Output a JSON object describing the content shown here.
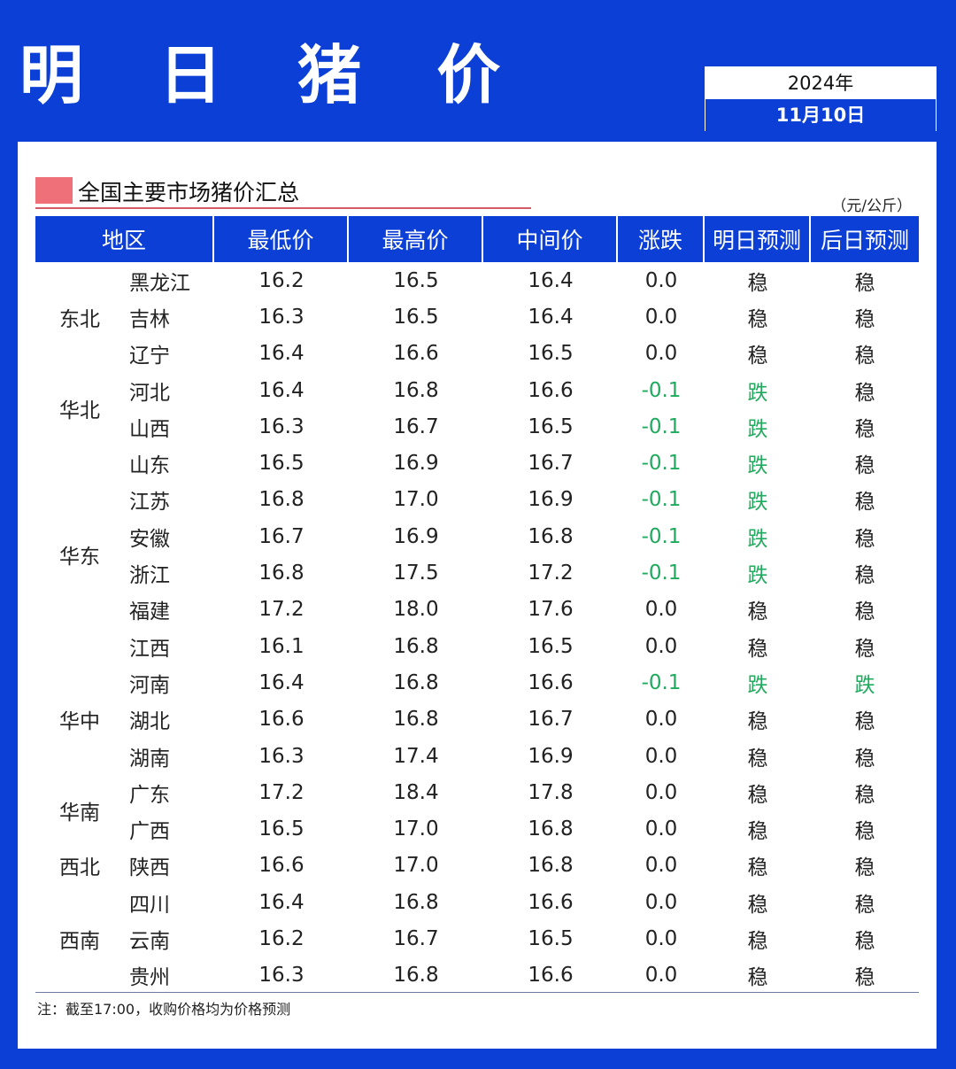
{
  "header": {
    "title": "明 日 猪 价",
    "year": "2024年",
    "date": "11月10日"
  },
  "section": {
    "title": "全国主要市场猪价汇总",
    "unit": "（元/公斤）"
  },
  "colors": {
    "brand_blue": "#0b3fd6",
    "marker_pink": "#f0707a",
    "down_green": "#1faa5e"
  },
  "table": {
    "headers": [
      "地区",
      "最低价",
      "最高价",
      "中间价",
      "涨跌",
      "明日预测",
      "后日预测"
    ],
    "groups": [
      {
        "region": "东北",
        "rows": [
          {
            "province": "黑龙江",
            "low": "16.2",
            "high": "16.5",
            "mid": "16.4",
            "change": "0.0",
            "tomorrow": "稳",
            "after": "稳"
          },
          {
            "province": "吉林",
            "low": "16.3",
            "high": "16.5",
            "mid": "16.4",
            "change": "0.0",
            "tomorrow": "稳",
            "after": "稳"
          },
          {
            "province": "辽宁",
            "low": "16.4",
            "high": "16.6",
            "mid": "16.5",
            "change": "0.0",
            "tomorrow": "稳",
            "after": "稳"
          }
        ]
      },
      {
        "region": "华北",
        "rows": [
          {
            "province": "河北",
            "low": "16.4",
            "high": "16.8",
            "mid": "16.6",
            "change": "-0.1",
            "tomorrow": "跌",
            "after": "稳"
          },
          {
            "province": "山西",
            "low": "16.3",
            "high": "16.7",
            "mid": "16.5",
            "change": "-0.1",
            "tomorrow": "跌",
            "after": "稳"
          }
        ]
      },
      {
        "region": "华东",
        "rows": [
          {
            "province": "山东",
            "low": "16.5",
            "high": "16.9",
            "mid": "16.7",
            "change": "-0.1",
            "tomorrow": "跌",
            "after": "稳"
          },
          {
            "province": "江苏",
            "low": "16.8",
            "high": "17.0",
            "mid": "16.9",
            "change": "-0.1",
            "tomorrow": "跌",
            "after": "稳"
          },
          {
            "province": "安徽",
            "low": "16.7",
            "high": "16.9",
            "mid": "16.8",
            "change": "-0.1",
            "tomorrow": "跌",
            "after": "稳"
          },
          {
            "province": "浙江",
            "low": "16.8",
            "high": "17.5",
            "mid": "17.2",
            "change": "-0.1",
            "tomorrow": "跌",
            "after": "稳"
          },
          {
            "province": "福建",
            "low": "17.2",
            "high": "18.0",
            "mid": "17.6",
            "change": "0.0",
            "tomorrow": "稳",
            "after": "稳"
          },
          {
            "province": "江西",
            "low": "16.1",
            "high": "16.8",
            "mid": "16.5",
            "change": "0.0",
            "tomorrow": "稳",
            "after": "稳"
          }
        ]
      },
      {
        "region": "华中",
        "rows": [
          {
            "province": "河南",
            "low": "16.4",
            "high": "16.8",
            "mid": "16.6",
            "change": "-0.1",
            "tomorrow": "跌",
            "after": "跌"
          },
          {
            "province": "湖北",
            "low": "16.6",
            "high": "16.8",
            "mid": "16.7",
            "change": "0.0",
            "tomorrow": "稳",
            "after": "稳"
          },
          {
            "province": "湖南",
            "low": "16.3",
            "high": "17.4",
            "mid": "16.9",
            "change": "0.0",
            "tomorrow": "稳",
            "after": "稳"
          }
        ]
      },
      {
        "region": "华南",
        "rows": [
          {
            "province": "广东",
            "low": "17.2",
            "high": "18.4",
            "mid": "17.8",
            "change": "0.0",
            "tomorrow": "稳",
            "after": "稳"
          },
          {
            "province": "广西",
            "low": "16.5",
            "high": "17.0",
            "mid": "16.8",
            "change": "0.0",
            "tomorrow": "稳",
            "after": "稳"
          }
        ]
      },
      {
        "region": "西北",
        "rows": [
          {
            "province": "陕西",
            "low": "16.6",
            "high": "17.0",
            "mid": "16.8",
            "change": "0.0",
            "tomorrow": "稳",
            "after": "稳"
          }
        ]
      },
      {
        "region": "西南",
        "rows": [
          {
            "province": "四川",
            "low": "16.4",
            "high": "16.8",
            "mid": "16.6",
            "change": "0.0",
            "tomorrow": "稳",
            "after": "稳"
          },
          {
            "province": "云南",
            "low": "16.2",
            "high": "16.7",
            "mid": "16.5",
            "change": "0.0",
            "tomorrow": "稳",
            "after": "稳"
          },
          {
            "province": "贵州",
            "low": "16.3",
            "high": "16.8",
            "mid": "16.6",
            "change": "0.0",
            "tomorrow": "稳",
            "after": "稳"
          }
        ]
      }
    ]
  },
  "note": "注：截至17:00，收购价格均为价格预测"
}
